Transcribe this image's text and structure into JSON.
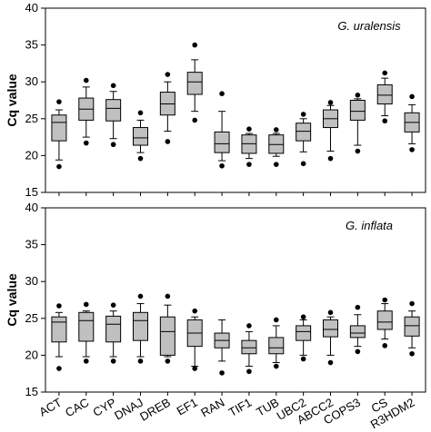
{
  "chart_data": [
    {
      "type": "boxplot",
      "title": "G. uralensis",
      "ylabel": "Cq value",
      "ylim": [
        15,
        40
      ],
      "yticks": [
        15,
        20,
        25,
        30,
        35,
        40
      ],
      "categories": [
        "ACT",
        "CAC",
        "CYP",
        "DNAJ",
        "DREB",
        "EF1",
        "RAN",
        "TIF1",
        "TUB",
        "UBC2",
        "ABCC2",
        "COPS3",
        "CS",
        "R3HDM2"
      ],
      "boxes": [
        {
          "whisker_low": 19.4,
          "q1": 22.0,
          "median": 24.5,
          "q3": 25.5,
          "whisker_high": 26.2,
          "outliers": [
            18.5,
            27.3
          ]
        },
        {
          "whisker_low": 22.5,
          "q1": 24.8,
          "median": 26.3,
          "q3": 27.8,
          "whisker_high": 29.3,
          "outliers": [
            21.7,
            30.2
          ]
        },
        {
          "whisker_low": 22.3,
          "q1": 24.7,
          "median": 26.4,
          "q3": 27.6,
          "whisker_high": 28.7,
          "outliers": [
            21.5,
            29.5
          ]
        },
        {
          "whisker_low": 20.4,
          "q1": 21.4,
          "median": 22.4,
          "q3": 23.8,
          "whisker_high": 24.8,
          "outliers": [
            19.6,
            25.8
          ]
        },
        {
          "whisker_low": 23.3,
          "q1": 25.5,
          "median": 27.0,
          "q3": 28.6,
          "whisker_high": 30.0,
          "outliers": [
            21.9,
            31.0
          ]
        },
        {
          "whisker_low": 26.0,
          "q1": 28.3,
          "median": 30.0,
          "q3": 31.3,
          "whisker_high": 33.0,
          "outliers": [
            24.8,
            35.0
          ]
        },
        {
          "whisker_low": 19.3,
          "q1": 20.4,
          "median": 21.6,
          "q3": 23.2,
          "whisker_high": 26.0,
          "outliers": [
            18.6,
            28.4
          ]
        },
        {
          "whisker_low": 19.6,
          "q1": 20.3,
          "median": 21.6,
          "q3": 22.8,
          "whisker_high": 23.0,
          "outliers": [
            18.8,
            23.6
          ]
        },
        {
          "whisker_low": 19.9,
          "q1": 20.3,
          "median": 21.5,
          "q3": 22.8,
          "whisker_high": 23.0,
          "outliers": [
            18.8,
            23.5
          ]
        },
        {
          "whisker_low": 20.5,
          "q1": 22.0,
          "median": 23.3,
          "q3": 24.4,
          "whisker_high": 25.0,
          "outliers": [
            18.9,
            25.6
          ]
        },
        {
          "whisker_low": 20.6,
          "q1": 23.8,
          "median": 25.0,
          "q3": 26.2,
          "whisker_high": 26.8,
          "outliers": [
            19.6,
            27.2
          ]
        },
        {
          "whisker_low": 21.4,
          "q1": 24.8,
          "median": 26.0,
          "q3": 27.5,
          "whisker_high": 27.7,
          "outliers": [
            20.6,
            28.2
          ]
        },
        {
          "whisker_low": 25.4,
          "q1": 27.0,
          "median": 28.2,
          "q3": 29.6,
          "whisker_high": 30.5,
          "outliers": [
            24.7,
            31.2
          ]
        },
        {
          "whisker_low": 21.6,
          "q1": 23.2,
          "median": 24.5,
          "q3": 25.8,
          "whisker_high": 26.9,
          "outliers": [
            20.8,
            28.0
          ]
        }
      ]
    },
    {
      "type": "boxplot",
      "title": "G. inflata",
      "ylabel": "Cq value",
      "ylim": [
        15,
        40
      ],
      "yticks": [
        15,
        20,
        25,
        30,
        35,
        40
      ],
      "categories": [
        "ACT",
        "CAC",
        "CYP",
        "DNAJ",
        "DREB",
        "EF1",
        "RAN",
        "TIF1",
        "TUB",
        "UBC2",
        "ABCC2",
        "COPS3",
        "CS",
        "R3HDM2"
      ],
      "boxes": [
        {
          "whisker_low": 19.8,
          "q1": 21.8,
          "median": 24.5,
          "q3": 25.2,
          "whisker_high": 25.8,
          "outliers": [
            18.2,
            26.7
          ]
        },
        {
          "whisker_low": 19.8,
          "q1": 21.9,
          "median": 24.7,
          "q3": 25.8,
          "whisker_high": 26.0,
          "outliers": [
            19.2,
            26.9
          ]
        },
        {
          "whisker_low": 19.8,
          "q1": 21.8,
          "median": 24.2,
          "q3": 25.3,
          "whisker_high": 26.0,
          "outliers": [
            19.2,
            26.8
          ]
        },
        {
          "whisker_low": 19.8,
          "q1": 22.0,
          "median": 24.7,
          "q3": 25.8,
          "whisker_high": 27.0,
          "outliers": [
            19.2,
            28.0
          ]
        },
        {
          "whisker_low": 19.8,
          "q1": 20.0,
          "median": 23.2,
          "q3": 25.2,
          "whisker_high": 26.8,
          "outliers": [
            19.2,
            28.0
          ]
        },
        {
          "whisker_low": 18.5,
          "q1": 21.2,
          "median": 23.0,
          "q3": 24.8,
          "whisker_high": 25.2,
          "outliers": [
            18.2,
            26.0
          ]
        },
        {
          "whisker_low": 19.2,
          "q1": 21.0,
          "median": 22.0,
          "q3": 23.0,
          "whisker_high": 24.8,
          "outliers": [
            17.6
          ]
        },
        {
          "whisker_low": 18.5,
          "q1": 20.2,
          "median": 21.0,
          "q3": 22.0,
          "whisker_high": 23.2,
          "outliers": [
            17.8,
            24.0
          ]
        },
        {
          "whisker_low": 19.0,
          "q1": 20.2,
          "median": 21.0,
          "q3": 22.4,
          "whisker_high": 24.0,
          "outliers": [
            18.5,
            24.8
          ]
        },
        {
          "whisker_low": 20.0,
          "q1": 22.0,
          "median": 23.2,
          "q3": 24.0,
          "whisker_high": 24.8,
          "outliers": [
            19.5,
            25.2
          ]
        },
        {
          "whisker_low": 20.0,
          "q1": 22.5,
          "median": 23.5,
          "q3": 24.8,
          "whisker_high": 25.2,
          "outliers": [
            19.0,
            25.8
          ]
        },
        {
          "whisker_low": 21.2,
          "q1": 22.4,
          "median": 23.0,
          "q3": 24.0,
          "whisker_high": 25.5,
          "outliers": [
            20.5,
            26.5
          ]
        },
        {
          "whisker_low": 22.2,
          "q1": 23.5,
          "median": 24.5,
          "q3": 26.0,
          "whisker_high": 27.0,
          "outliers": [
            21.3,
            27.5
          ]
        },
        {
          "whisker_low": 21.0,
          "q1": 22.6,
          "median": 24.0,
          "q3": 25.2,
          "whisker_high": 26.0,
          "outliers": [
            20.2,
            27.0
          ]
        }
      ]
    }
  ],
  "colors": {
    "box_fill": "#c0c0c0",
    "line": "#000000",
    "background": "#ffffff"
  }
}
